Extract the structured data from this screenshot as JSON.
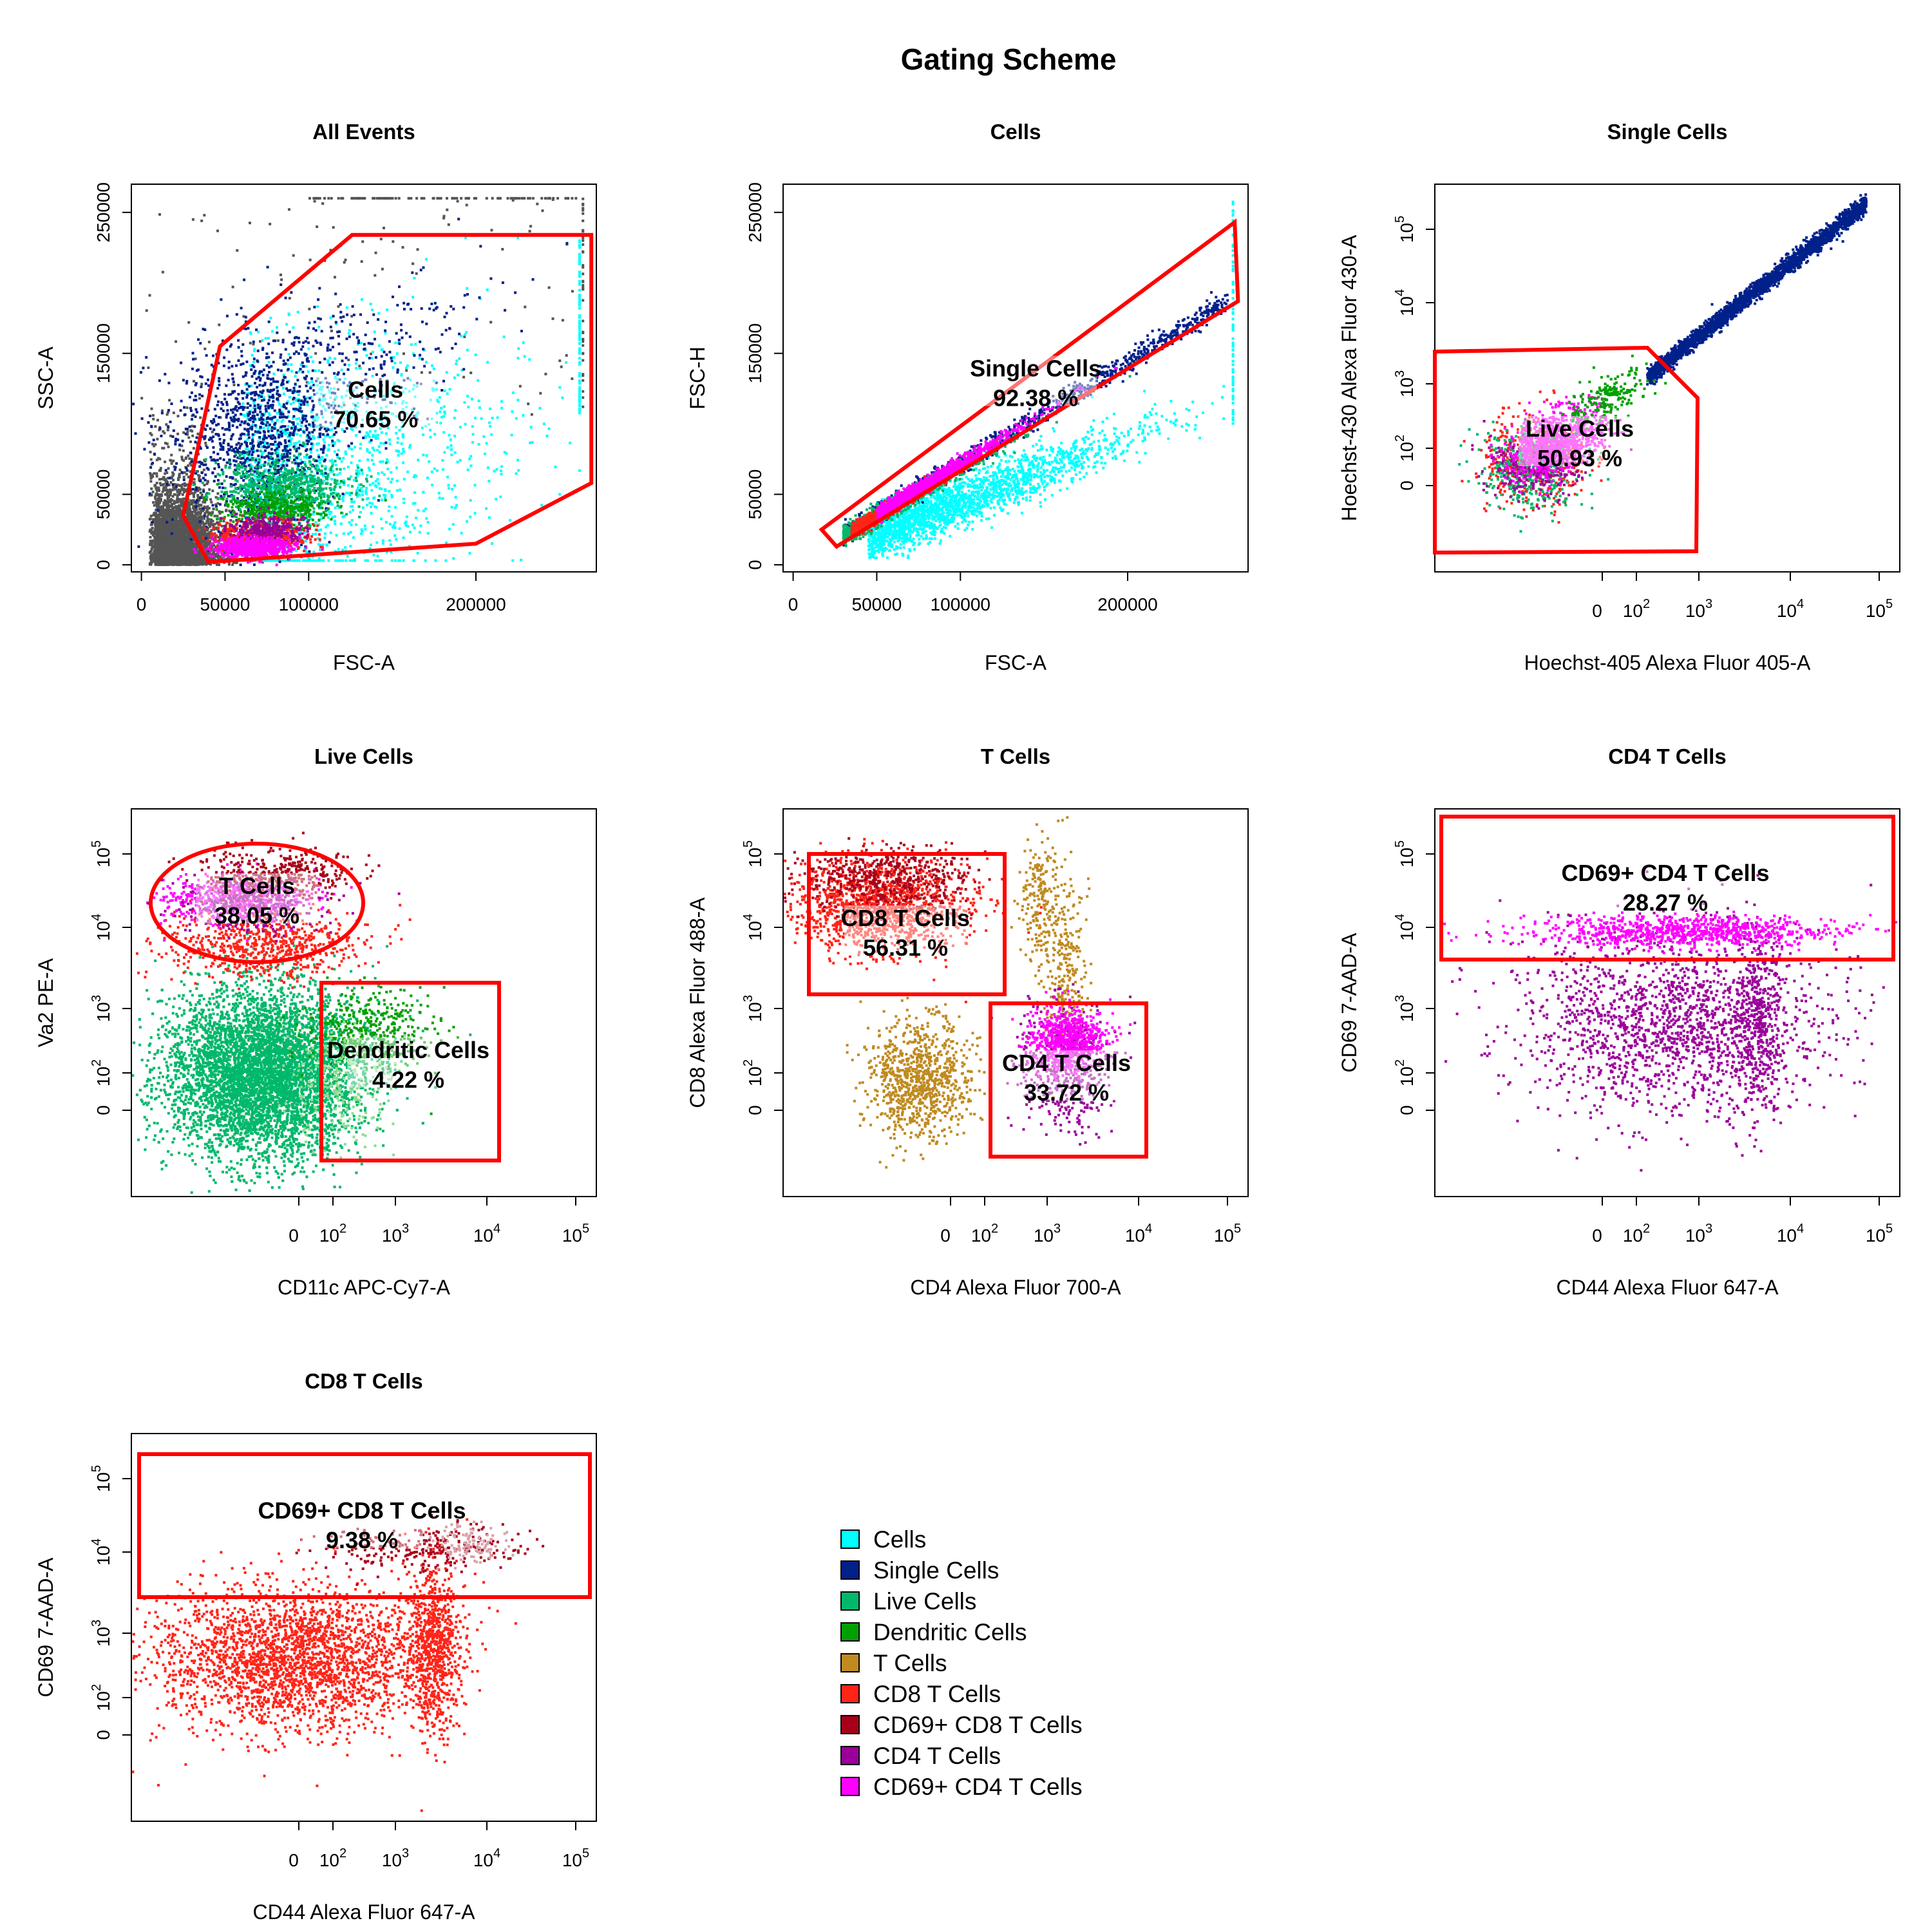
{
  "figure": {
    "title": "Gating Scheme",
    "colors": {
      "background_events": "#555555",
      "Cells": "#00ffff",
      "Single Cells": "#00208a",
      "Live Cells": "#00b86b",
      "Dendritic Cells": "#00a000",
      "T Cells": "#c08a20",
      "CD8 T Cells": "#ff2418",
      "CD69+ CD8 T Cells": "#a8001a",
      "CD4 T Cells": "#9a0099",
      "CD69+ CD4 T Cells": "#ff00ff",
      "gate": "#ff0000",
      "gate_label_highlight": "#ffffff"
    }
  },
  "chart_data": [
    {
      "type": "scatter",
      "title": "All Events",
      "xlabel": "FSC-A",
      "ylabel": "SSC-A",
      "x_scale": "linear",
      "y_scale": "linear",
      "xlim": [
        -6000,
        272000
      ],
      "ylim": [
        -5000,
        270000
      ],
      "x_ticks": [
        0,
        50000,
        100000,
        200000
      ],
      "x_tick_labels": [
        "0",
        "50000",
        "100000",
        "200000"
      ],
      "y_ticks": [
        0,
        50000,
        150000,
        250000
      ],
      "y_tick_labels": [
        "0",
        "50000",
        "150000",
        "250000"
      ],
      "populations_shown": [
        "background_events",
        "Cells",
        "Single Cells",
        "Live Cells",
        "Dendritic Cells",
        "T Cells",
        "CD8 T Cells",
        "CD69+ CD8 T Cells",
        "CD4 T Cells",
        "CD69+ CD4 T Cells"
      ],
      "gate": {
        "name": "Cells",
        "shape": "polygon",
        "points": [
          [
            40000,
            2000
          ],
          [
            25000,
            35000
          ],
          [
            47000,
            155000
          ],
          [
            126000,
            234000
          ],
          [
            269000,
            234000
          ],
          [
            269000,
            58000
          ],
          [
            200000,
            15000
          ]
        ],
        "percent": "70.65 %",
        "label_at": [
          140000,
          115000
        ]
      }
    },
    {
      "type": "scatter",
      "title": "Cells",
      "xlabel": "FSC-A",
      "ylabel": "FSC-H",
      "x_scale": "linear",
      "y_scale": "linear",
      "xlim": [
        -6000,
        272000
      ],
      "ylim": [
        -5000,
        270000
      ],
      "x_ticks": [
        0,
        50000,
        100000,
        200000
      ],
      "x_tick_labels": [
        "0",
        "50000",
        "100000",
        "200000"
      ],
      "y_ticks": [
        0,
        50000,
        150000,
        250000
      ],
      "y_tick_labels": [
        "0",
        "50000",
        "150000",
        "250000"
      ],
      "populations_shown": [
        "Cells",
        "Single Cells",
        "Live Cells",
        "Dendritic Cells",
        "T Cells",
        "CD8 T Cells",
        "CD69+ CD8 T Cells",
        "CD4 T Cells",
        "CD69+ CD4 T Cells"
      ],
      "gate": {
        "name": "Single Cells",
        "shape": "polygon",
        "points": [
          [
            17000,
            25000
          ],
          [
            26000,
            13000
          ],
          [
            266000,
            187000
          ],
          [
            264000,
            243000
          ]
        ],
        "percent": "92.38 %",
        "label_at": [
          145000,
          130000
        ]
      }
    },
    {
      "type": "scatter",
      "title": "Single Cells",
      "xlabel": "Hoechst-405 Alexa Fluor 405-A",
      "ylabel": "Hoechst-430 Alexa Fluor 430-A",
      "x_scale": "biexponential",
      "y_scale": "biexponential",
      "x_ticks": [
        "0",
        "10^2",
        "10^3",
        "10^4",
        "10^5"
      ],
      "y_ticks": [
        "0",
        "10^2",
        "10^3",
        "10^4",
        "10^5"
      ],
      "populations_shown": [
        "Single Cells",
        "Live Cells",
        "Dendritic Cells",
        "T Cells",
        "CD8 T Cells",
        "CD69+ CD8 T Cells",
        "CD4 T Cells",
        "CD69+ CD4 T Cells"
      ],
      "gate": {
        "name": "Live Cells",
        "shape": "polygon",
        "percent": "50.93 %"
      }
    },
    {
      "type": "scatter",
      "title": "Live Cells",
      "xlabel": "CD11c APC-Cy7-A",
      "ylabel": "Va2 PE-A",
      "x_scale": "biexponential",
      "y_scale": "biexponential",
      "x_ticks": [
        "0",
        "10^2",
        "10^3",
        "10^4",
        "10^5"
      ],
      "y_ticks": [
        "0",
        "10^2",
        "10^3",
        "10^4",
        "10^5"
      ],
      "populations_shown": [
        "Live Cells",
        "Dendritic Cells",
        "T Cells",
        "CD8 T Cells",
        "CD69+ CD8 T Cells",
        "CD4 T Cells",
        "CD69+ CD4 T Cells"
      ],
      "gates": [
        {
          "name": "T Cells",
          "shape": "ellipse",
          "percent": "38.05 %"
        },
        {
          "name": "Dendritic Cells",
          "shape": "rectangle",
          "percent": "4.22 %"
        }
      ]
    },
    {
      "type": "scatter",
      "title": "T Cells",
      "xlabel": "CD4 Alexa Fluor 700-A",
      "ylabel": "CD8 Alexa Fluor 488-A",
      "x_scale": "biexponential",
      "y_scale": "biexponential",
      "x_ticks": [
        "0",
        "10^2",
        "10^3",
        "10^4",
        "10^5"
      ],
      "y_ticks": [
        "0",
        "10^2",
        "10^3",
        "10^4",
        "10^5"
      ],
      "populations_shown": [
        "T Cells",
        "CD8 T Cells",
        "CD69+ CD8 T Cells",
        "CD4 T Cells",
        "CD69+ CD4 T Cells"
      ],
      "gates": [
        {
          "name": "CD8 T Cells",
          "shape": "rectangle",
          "percent": "56.31 %"
        },
        {
          "name": "CD4 T Cells",
          "shape": "rectangle",
          "percent": "33.72 %"
        }
      ]
    },
    {
      "type": "scatter",
      "title": "CD4 T Cells",
      "xlabel": "CD44 Alexa Fluor 647-A",
      "ylabel": "CD69 7-AAD-A",
      "x_scale": "biexponential",
      "y_scale": "biexponential",
      "x_ticks": [
        "0",
        "10^2",
        "10^3",
        "10^4",
        "10^5"
      ],
      "y_ticks": [
        "0",
        "10^2",
        "10^3",
        "10^4",
        "10^5"
      ],
      "populations_shown": [
        "CD4 T Cells",
        "CD69+ CD4 T Cells"
      ],
      "gate": {
        "name": "CD69+ CD4 T Cells",
        "shape": "rectangle",
        "percent": "28.27 %"
      }
    },
    {
      "type": "scatter",
      "title": "CD8 T Cells",
      "xlabel": "CD44 Alexa Fluor 647-A",
      "ylabel": "CD69 7-AAD-A",
      "x_scale": "biexponential",
      "y_scale": "biexponential",
      "x_ticks": [
        "0",
        "10^2",
        "10^3",
        "10^4",
        "10^5"
      ],
      "y_ticks": [
        "0",
        "10^2",
        "10^3",
        "10^4",
        "10^5"
      ],
      "populations_shown": [
        "CD8 T Cells",
        "CD69+ CD8 T Cells"
      ],
      "gate": {
        "name": "CD69+ CD8 T Cells",
        "shape": "rectangle",
        "percent": "9.38 %"
      }
    }
  ],
  "legend": {
    "placement": "bottom-center",
    "entries": [
      {
        "label": "Cells",
        "color": "#00ffff"
      },
      {
        "label": "Single Cells",
        "color": "#00208a"
      },
      {
        "label": "Live Cells",
        "color": "#00b86b"
      },
      {
        "label": "Dendritic Cells",
        "color": "#00a000"
      },
      {
        "label": "T Cells",
        "color": "#c08a20"
      },
      {
        "label": "CD8 T Cells",
        "color": "#ff2418"
      },
      {
        "label": "CD69+ CD8 T Cells",
        "color": "#a8001a"
      },
      {
        "label": "CD4 T Cells",
        "color": "#9a0099"
      },
      {
        "label": "CD69+ CD4 T Cells",
        "color": "#ff00ff"
      }
    ]
  }
}
